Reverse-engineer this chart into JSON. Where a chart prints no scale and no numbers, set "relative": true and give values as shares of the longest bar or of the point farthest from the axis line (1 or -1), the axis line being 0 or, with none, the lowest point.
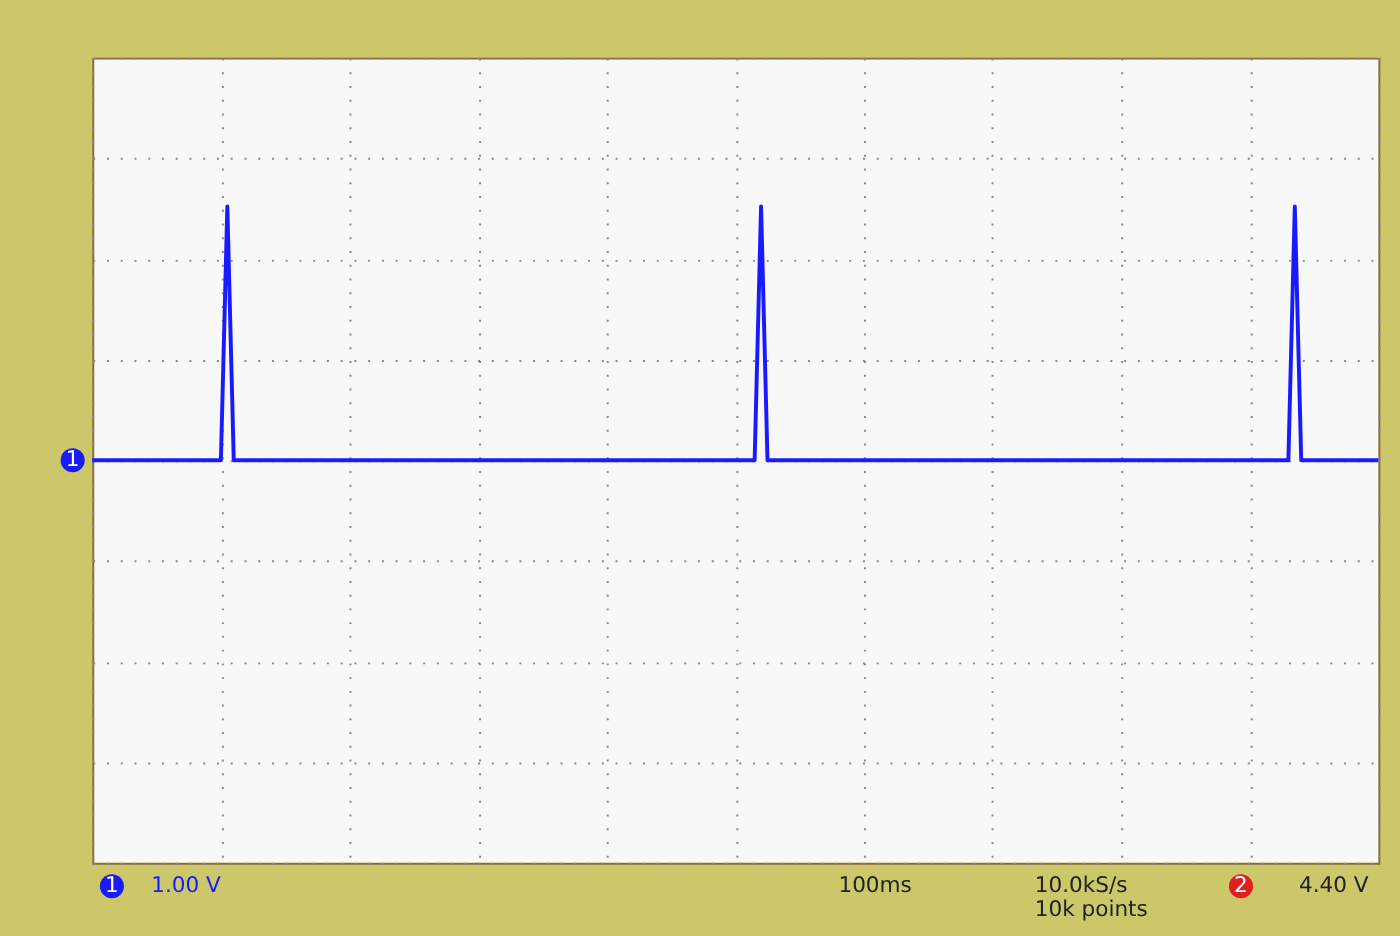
{
  "chart_data": {
    "type": "line",
    "relative": true,
    "grid": true,
    "tick_labels": false,
    "categories": [
      null,
      null,
      null,
      null,
      null,
      null,
      null,
      null,
      null,
      null,
      null,
      null,
      null,
      null,
      null,
      null,
      null,
      null,
      null,
      null,
      null,
      null,
      null,
      null,
      null,
      null,
      null,
      null,
      null,
      null,
      null,
      null,
      null,
      null,
      null,
      null,
      null,
      null,
      null,
      null,
      null,
      null,
      null,
      null,
      null,
      null,
      null,
      null,
      null,
      null,
      null,
      null,
      null,
      null,
      null,
      null,
      null,
      null,
      null,
      null,
      null,
      null,
      null,
      null,
      null,
      null,
      null,
      null,
      null,
      null,
      null,
      null,
      null,
      null,
      null,
      null,
      null,
      null,
      null,
      null,
      null,
      null,
      null,
      null,
      null,
      null,
      null,
      null,
      null,
      null,
      null,
      null,
      null,
      null,
      null,
      null,
      null,
      null,
      null,
      null,
      null,
      null,
      null,
      null,
      null,
      null,
      null,
      null,
      null,
      null,
      null,
      null,
      null,
      null,
      null,
      null,
      null,
      null,
      null,
      null,
      null,
      null,
      null,
      null,
      null,
      null,
      null,
      null,
      null,
      null,
      null,
      null,
      null,
      null,
      null,
      null,
      null,
      null,
      null,
      null,
      null,
      null,
      null,
      null,
      null,
      null,
      null,
      null,
      null,
      null,
      null,
      null,
      null,
      null,
      null,
      null,
      null,
      null,
      null,
      null,
      null,
      null,
      null,
      null,
      null,
      null,
      null,
      null,
      null,
      null,
      null,
      null,
      null,
      null,
      null,
      null,
      null,
      null,
      null,
      null,
      null,
      null,
      null,
      null,
      null,
      null,
      null,
      null,
      null,
      null,
      null,
      null,
      null,
      null,
      null,
      null,
      null,
      null,
      null,
      null,
      null
    ],
    "series": [
      {
        "color": "#1a1aff",
        "values": [
          0,
          0,
          0,
          0,
          0,
          0,
          0,
          0,
          0,
          0,
          0,
          0,
          0,
          0,
          0,
          0,
          0,
          0,
          0,
          0,
          0,
          1,
          0,
          0,
          0,
          0,
          0,
          0,
          0,
          0,
          0,
          0,
          0,
          0,
          0,
          0,
          0,
          0,
          0,
          0,
          0,
          0,
          0,
          0,
          0,
          0,
          0,
          0,
          0,
          0,
          0,
          0,
          0,
          0,
          0,
          0,
          0,
          0,
          0,
          0,
          0,
          0,
          0,
          0,
          0,
          0,
          0,
          0,
          0,
          0,
          0,
          0,
          0,
          0,
          0,
          0,
          0,
          0,
          0,
          0,
          0,
          0,
          0,
          0,
          0,
          0,
          0,
          0,
          0,
          0,
          0,
          0,
          0,
          0,
          0,
          0,
          0,
          0,
          0,
          0,
          0,
          0,
          0,
          0,
          1,
          0,
          0,
          0,
          0,
          0,
          0,
          0,
          0,
          0,
          0,
          0,
          0,
          0,
          0,
          0,
          0,
          0,
          0,
          0,
          0,
          0,
          0,
          0,
          0,
          0,
          0,
          0,
          0,
          0,
          0,
          0,
          0,
          0,
          0,
          0,
          0,
          0,
          0,
          0,
          0,
          0,
          0,
          0,
          0,
          0,
          0,
          0,
          0,
          0,
          0,
          0,
          0,
          0,
          0,
          0,
          0,
          0,
          0,
          0,
          0,
          0,
          0,
          0,
          0,
          0,
          0,
          0,
          0,
          0,
          0,
          0,
          0,
          0,
          0,
          0,
          0,
          0,
          0,
          0,
          0,
          0,
          0,
          1,
          0,
          0,
          0,
          0,
          0,
          0,
          0,
          0,
          0,
          0,
          0,
          0,
          0
        ]
      }
    ],
    "annotations": [
      "1",
      "1.00 V",
      "100ms",
      "10.0kS/s",
      "10k points",
      "2",
      "4.40 V",
      "1"
    ]
  }
}
